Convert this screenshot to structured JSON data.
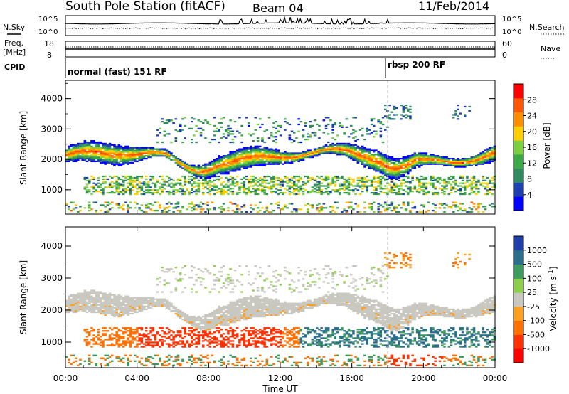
{
  "header": {
    "station": "South Pole Station (fitACF)",
    "beam": "Beam 04",
    "date": "11/Feb/2014"
  },
  "status_panels": {
    "nsky_label": "N.Sky",
    "nsearch_label": "N.Search",
    "noise_ticks": [
      "10^5",
      "10^0"
    ],
    "freq_label_1": "Freq.",
    "freq_label_2": "[MHz]",
    "freq_ticks": [
      "18",
      "8"
    ],
    "nave_label": "Nave",
    "nave_ticks": [
      "60",
      "0"
    ],
    "cpid_label": "CPID",
    "modes": [
      {
        "label": "normal (fast) 151 RF",
        "start_hour": 0
      },
      {
        "label": "rbsp 200 RF",
        "start_hour": 18
      }
    ]
  },
  "chart_data": [
    {
      "type": "heatmap",
      "name": "Power [dB]",
      "ylabel": "Slant Range [km]",
      "xlabel": "Time UT",
      "x_range_hours": [
        0,
        24
      ],
      "ylim": [
        200,
        4600
      ],
      "yticks": [
        "1000",
        "2000",
        "3000",
        "4000"
      ],
      "colorbar": {
        "label": "Power [dB]",
        "ticks": [
          "4",
          "8",
          "12",
          "16",
          "20",
          "24",
          "28"
        ],
        "colors": [
          "#0000ff",
          "#1e3fb0",
          "#2f8a60",
          "#3aa845",
          "#7bd040",
          "#ffd000",
          "#ff9000",
          "#ff5500",
          "#ff0000"
        ]
      },
      "echo_bands": [
        {
          "desc": "main F-region band",
          "range_km": [
            1600,
            2500
          ],
          "peak_power_db": 28
        },
        {
          "desc": "lower band",
          "range_km": [
            800,
            1400
          ],
          "peak_power_db": 20
        },
        {
          "desc": "near-range",
          "range_km": [
            300,
            600
          ],
          "peak_power_db": 24
        }
      ]
    },
    {
      "type": "heatmap",
      "name": "Velocity [m s-1]",
      "ylabel": "Slant Range [km]",
      "xlabel": "Time UT",
      "x_range_hours": [
        0,
        24
      ],
      "ylim": [
        200,
        4600
      ],
      "yticks": [
        "1000",
        "2000",
        "3000",
        "4000"
      ],
      "colorbar": {
        "label_main": "Velocity",
        "label_unit": "[m s",
        "label_exp": "-1",
        "label_close": "]",
        "ticks": [
          "1000",
          "500",
          "100",
          "25",
          "-25",
          "-100",
          "-500",
          "-1000"
        ],
        "colors": [
          "#1f3faa",
          "#2a6e8c",
          "#3c9a5c",
          "#8ed04b",
          "#c8c8c0",
          "#ffa020",
          "#ff7000",
          "#ff3000",
          "#ff0000"
        ]
      }
    }
  ],
  "time_axis": {
    "ticks": [
      "00:00",
      "04:00",
      "08:00",
      "12:00",
      "16:00",
      "20:00",
      "00:00"
    ],
    "label": "Time UT"
  }
}
